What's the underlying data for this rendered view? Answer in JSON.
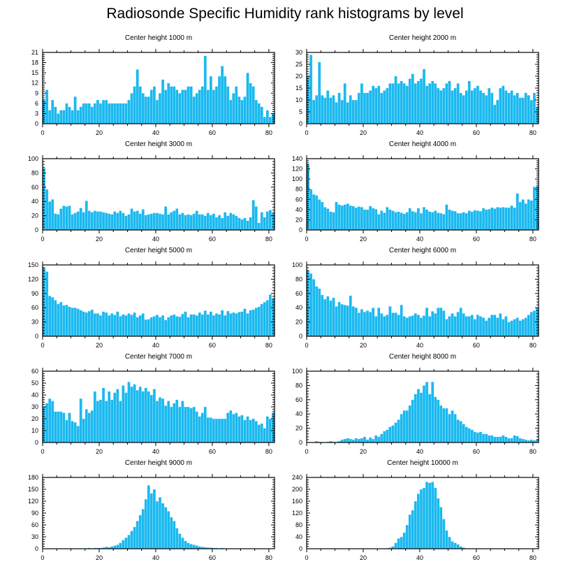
{
  "title": "Radiosonde Specific Humidity rank histograms by level",
  "colors": {
    "bar": "#1ab9f0",
    "frame": "#000000"
  },
  "chart_data": [
    {
      "type": "bar",
      "title": "Center height 1000 m",
      "xlim": [
        0,
        82
      ],
      "ylim": [
        0,
        21
      ],
      "xticks": [
        0,
        20,
        40,
        60,
        80
      ],
      "yticks": [
        0,
        3,
        6,
        9,
        12,
        15,
        18,
        21
      ],
      "values": [
        7,
        10,
        4,
        7,
        5,
        3,
        4,
        4,
        6,
        5,
        4,
        8,
        4,
        5,
        6,
        6,
        6,
        5,
        6,
        7,
        6,
        7,
        7,
        6,
        6,
        6,
        6,
        6,
        6,
        6,
        7,
        9,
        11,
        16,
        11,
        9,
        8,
        8,
        10,
        11,
        7,
        9,
        13,
        10,
        12,
        11,
        11,
        10,
        9,
        10,
        10,
        11,
        11,
        8,
        9,
        10,
        11,
        20,
        10,
        14,
        10,
        11,
        14,
        17,
        14,
        11,
        7,
        9,
        11,
        8,
        7,
        8,
        15,
        12,
        11,
        7,
        6,
        5,
        2,
        4,
        2,
        3
      ]
    },
    {
      "type": "bar",
      "title": "Center height 2000 m",
      "xlim": [
        0,
        82
      ],
      "ylim": [
        0,
        30
      ],
      "xticks": [
        0,
        20,
        40,
        60,
        80
      ],
      "yticks": [
        0,
        5,
        10,
        15,
        20,
        25,
        30
      ],
      "values": [
        20,
        29,
        10,
        12,
        26,
        12,
        11,
        14,
        11,
        12,
        9,
        13,
        10,
        17,
        9,
        12,
        10,
        10,
        13,
        17,
        13,
        13,
        14,
        16,
        15,
        16,
        13,
        14,
        15,
        17,
        17,
        20,
        17,
        18,
        17,
        16,
        19,
        21,
        17,
        18,
        19,
        23,
        16,
        17,
        18,
        17,
        15,
        14,
        15,
        17,
        18,
        14,
        15,
        17,
        13,
        12,
        14,
        18,
        14,
        15,
        16,
        14,
        13,
        12,
        15,
        13,
        8,
        10,
        15,
        16,
        14,
        13,
        14,
        12,
        13,
        11,
        11,
        13,
        12,
        10,
        13,
        7
      ]
    },
    {
      "type": "bar",
      "title": "Center height 3000 m",
      "xlim": [
        0,
        82
      ],
      "ylim": [
        0,
        100
      ],
      "xticks": [
        0,
        20,
        40,
        60,
        80
      ],
      "yticks": [
        0,
        20,
        40,
        60,
        80,
        100
      ],
      "values": [
        87,
        57,
        40,
        43,
        23,
        22,
        30,
        34,
        33,
        34,
        22,
        24,
        26,
        31,
        25,
        41,
        27,
        25,
        27,
        26,
        26,
        25,
        24,
        23,
        22,
        26,
        24,
        27,
        24,
        20,
        22,
        30,
        26,
        27,
        23,
        29,
        21,
        22,
        23,
        24,
        24,
        23,
        22,
        33,
        22,
        25,
        27,
        30,
        22,
        24,
        21,
        22,
        21,
        23,
        27,
        22,
        22,
        20,
        24,
        21,
        23,
        18,
        21,
        17,
        25,
        20,
        24,
        22,
        20,
        17,
        15,
        17,
        13,
        18,
        42,
        33,
        10,
        25,
        18,
        26,
        28,
        24
      ]
    },
    {
      "type": "bar",
      "title": "Center height 4000 m",
      "xlim": [
        0,
        82
      ],
      "ylim": [
        0,
        140
      ],
      "xticks": [
        0,
        20,
        40,
        60,
        80
      ],
      "yticks": [
        0,
        20,
        40,
        60,
        80,
        100,
        120,
        140
      ],
      "values": [
        130,
        80,
        70,
        68,
        60,
        55,
        45,
        42,
        36,
        35,
        55,
        50,
        48,
        50,
        52,
        48,
        47,
        44,
        46,
        45,
        40,
        40,
        47,
        43,
        41,
        31,
        38,
        34,
        45,
        40,
        38,
        35,
        36,
        34,
        32,
        35,
        43,
        37,
        35,
        43,
        33,
        45,
        40,
        36,
        35,
        38,
        34,
        33,
        31,
        50,
        40,
        38,
        37,
        33,
        33,
        35,
        33,
        38,
        36,
        39,
        38,
        37,
        43,
        40,
        41,
        44,
        42,
        45,
        44,
        45,
        44,
        44,
        48,
        44,
        72,
        55,
        60,
        52,
        60,
        58,
        85,
        86
      ]
    },
    {
      "type": "bar",
      "title": "Center height 5000 m",
      "xlim": [
        0,
        82
      ],
      "ylim": [
        0,
        150
      ],
      "xticks": [
        0,
        20,
        40,
        60,
        80
      ],
      "yticks": [
        0,
        30,
        60,
        90,
        120,
        150
      ],
      "values": [
        145,
        136,
        85,
        82,
        76,
        68,
        72,
        65,
        66,
        62,
        60,
        60,
        58,
        55,
        52,
        50,
        53,
        56,
        48,
        48,
        44,
        52,
        50,
        44,
        48,
        45,
        52,
        42,
        46,
        44,
        48,
        45,
        50,
        40,
        44,
        48,
        35,
        36,
        40,
        42,
        45,
        40,
        44,
        34,
        40,
        44,
        46,
        42,
        41,
        47,
        52,
        40,
        46,
        46,
        44,
        50,
        46,
        54,
        46,
        52,
        44,
        48,
        46,
        55,
        44,
        53,
        48,
        50,
        48,
        51,
        52,
        58,
        48,
        55,
        56,
        60,
        62,
        68,
        72,
        76,
        88,
        80
      ]
    },
    {
      "type": "bar",
      "title": "Center height 6000 m",
      "xlim": [
        0,
        82
      ],
      "ylim": [
        0,
        100
      ],
      "xticks": [
        0,
        20,
        40,
        60,
        80
      ],
      "yticks": [
        0,
        20,
        40,
        60,
        80,
        100
      ],
      "values": [
        93,
        88,
        80,
        70,
        67,
        58,
        52,
        56,
        50,
        54,
        42,
        48,
        45,
        44,
        43,
        57,
        42,
        40,
        33,
        38,
        34,
        36,
        34,
        40,
        28,
        40,
        32,
        28,
        30,
        42,
        33,
        33,
        30,
        44,
        28,
        26,
        28,
        29,
        32,
        30,
        26,
        29,
        40,
        28,
        35,
        32,
        40,
        40,
        36,
        24,
        28,
        32,
        28,
        34,
        40,
        32,
        28,
        28,
        30,
        24,
        30,
        28,
        26,
        22,
        26,
        30,
        30,
        26,
        32,
        24,
        28,
        20,
        22,
        24,
        26,
        22,
        24,
        26,
        30,
        34,
        36,
        40
      ]
    },
    {
      "type": "bar",
      "title": "Center height 7000 m",
      "xlim": [
        0,
        82
      ],
      "ylim": [
        0,
        60
      ],
      "xticks": [
        0,
        20,
        40,
        60,
        80
      ],
      "yticks": [
        0,
        10,
        20,
        30,
        40,
        50,
        60
      ],
      "values": [
        30,
        33,
        37,
        35,
        26,
        26,
        26,
        25,
        19,
        25,
        18,
        17,
        14,
        37,
        20,
        28,
        25,
        27,
        43,
        35,
        36,
        46,
        35,
        43,
        36,
        42,
        45,
        35,
        48,
        42,
        51,
        47,
        49,
        44,
        47,
        43,
        46,
        43,
        40,
        45,
        35,
        38,
        37,
        31,
        35,
        30,
        33,
        36,
        30,
        35,
        30,
        30,
        29,
        30,
        26,
        22,
        25,
        30,
        21,
        21,
        20,
        20,
        20,
        20,
        20,
        25,
        27,
        24,
        25,
        22,
        23,
        19,
        22,
        19,
        20,
        18,
        15,
        16,
        12,
        22,
        20,
        25
      ]
    },
    {
      "type": "bar",
      "title": "Center height 8000 m",
      "xlim": [
        0,
        82
      ],
      "ylim": [
        0,
        100
      ],
      "xticks": [
        0,
        20,
        40,
        60,
        80
      ],
      "yticks": [
        0,
        20,
        40,
        60,
        80,
        100
      ],
      "values": [
        0,
        0,
        0,
        2,
        1,
        0,
        0,
        1,
        2,
        1,
        1,
        2,
        4,
        5,
        6,
        5,
        4,
        6,
        5,
        6,
        8,
        4,
        7,
        5,
        10,
        8,
        12,
        16,
        18,
        22,
        24,
        28,
        32,
        40,
        45,
        45,
        52,
        60,
        68,
        75,
        70,
        80,
        85,
        68,
        85,
        64,
        60,
        52,
        48,
        48,
        40,
        45,
        40,
        32,
        30,
        26,
        22,
        20,
        18,
        15,
        14,
        15,
        12,
        12,
        10,
        10,
        8,
        8,
        8,
        10,
        8,
        6,
        6,
        10,
        9,
        6,
        5,
        4,
        3,
        4,
        3,
        4
      ]
    },
    {
      "type": "bar",
      "title": "Center height 9000 m",
      "xlim": [
        0,
        82
      ],
      "ylim": [
        0,
        180
      ],
      "xticks": [
        0,
        20,
        40,
        60,
        80
      ],
      "yticks": [
        0,
        30,
        60,
        90,
        120,
        150,
        180
      ],
      "values": [
        0,
        0,
        0,
        0,
        0,
        0,
        1,
        0,
        1,
        0,
        1,
        0,
        1,
        1,
        1,
        0,
        2,
        1,
        2,
        2,
        2,
        3,
        5,
        4,
        6,
        8,
        10,
        15,
        22,
        28,
        35,
        45,
        55,
        70,
        85,
        100,
        125,
        160,
        140,
        150,
        120,
        130,
        115,
        105,
        95,
        80,
        70,
        52,
        38,
        28,
        20,
        15,
        12,
        10,
        8,
        6,
        5,
        4,
        3,
        3,
        2,
        2,
        1,
        2,
        1,
        1,
        1,
        0,
        0,
        1,
        0,
        0,
        0,
        0,
        0,
        0,
        0,
        0,
        0,
        0,
        0,
        0
      ]
    },
    {
      "type": "bar",
      "title": "Center height 10000 m",
      "xlim": [
        0,
        82
      ],
      "ylim": [
        0,
        240
      ],
      "xticks": [
        0,
        20,
        40,
        60,
        80
      ],
      "yticks": [
        0,
        40,
        80,
        120,
        160,
        200,
        240
      ],
      "values": [
        0,
        0,
        0,
        0,
        0,
        0,
        0,
        0,
        0,
        0,
        0,
        0,
        0,
        0,
        0,
        0,
        0,
        0,
        0,
        0,
        0,
        0,
        0,
        0,
        0,
        0,
        0,
        1,
        2,
        4,
        8,
        20,
        35,
        40,
        55,
        80,
        115,
        130,
        160,
        185,
        200,
        205,
        225,
        222,
        225,
        205,
        170,
        140,
        100,
        62,
        40,
        25,
        20,
        15,
        8,
        4,
        2,
        1,
        1,
        0,
        0,
        0,
        0,
        0,
        0,
        0,
        0,
        0,
        0,
        0,
        0,
        0,
        0,
        0,
        0,
        0,
        0,
        0,
        0,
        0,
        0,
        0
      ]
    }
  ]
}
